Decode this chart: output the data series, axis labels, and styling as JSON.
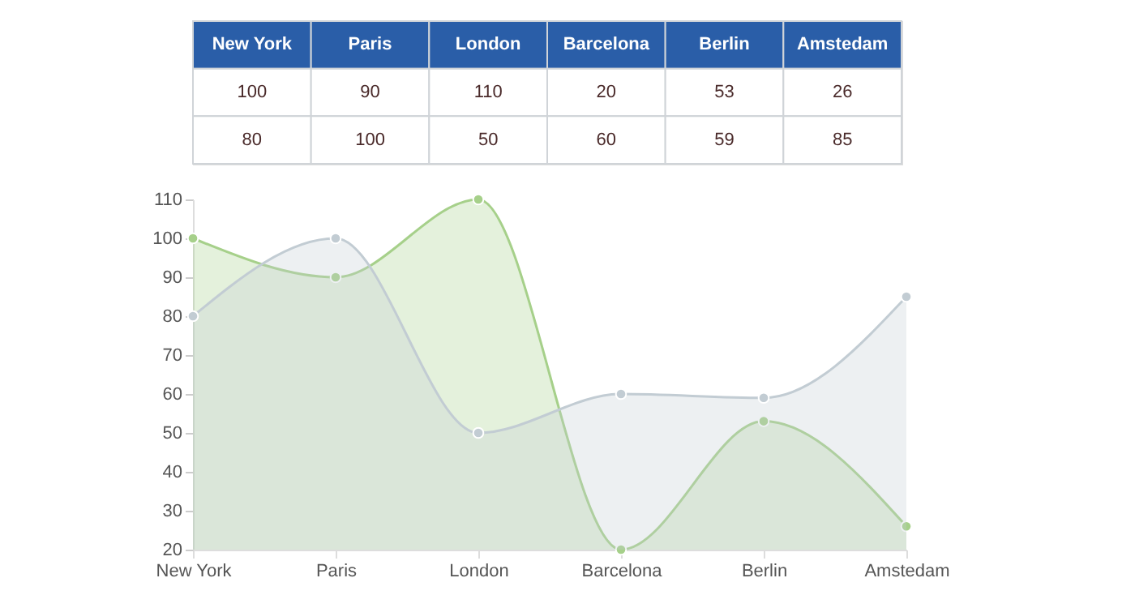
{
  "chart_data": {
    "type": "area",
    "categories": [
      "New York",
      "Paris",
      "London",
      "Barcelona",
      "Berlin",
      "Amstedam"
    ],
    "series": [
      {
        "color": "#a6d08a",
        "values": [
          100,
          90,
          110,
          20,
          53,
          26
        ]
      },
      {
        "color": "#c2ccd3",
        "values": [
          80,
          100,
          50,
          60,
          59,
          85
        ]
      }
    ],
    "ylim": [
      20,
      110
    ],
    "yticks": [
      20,
      30,
      40,
      50,
      60,
      70,
      80,
      90,
      100,
      110
    ],
    "marker": "circle",
    "data_labels": true
  }
}
